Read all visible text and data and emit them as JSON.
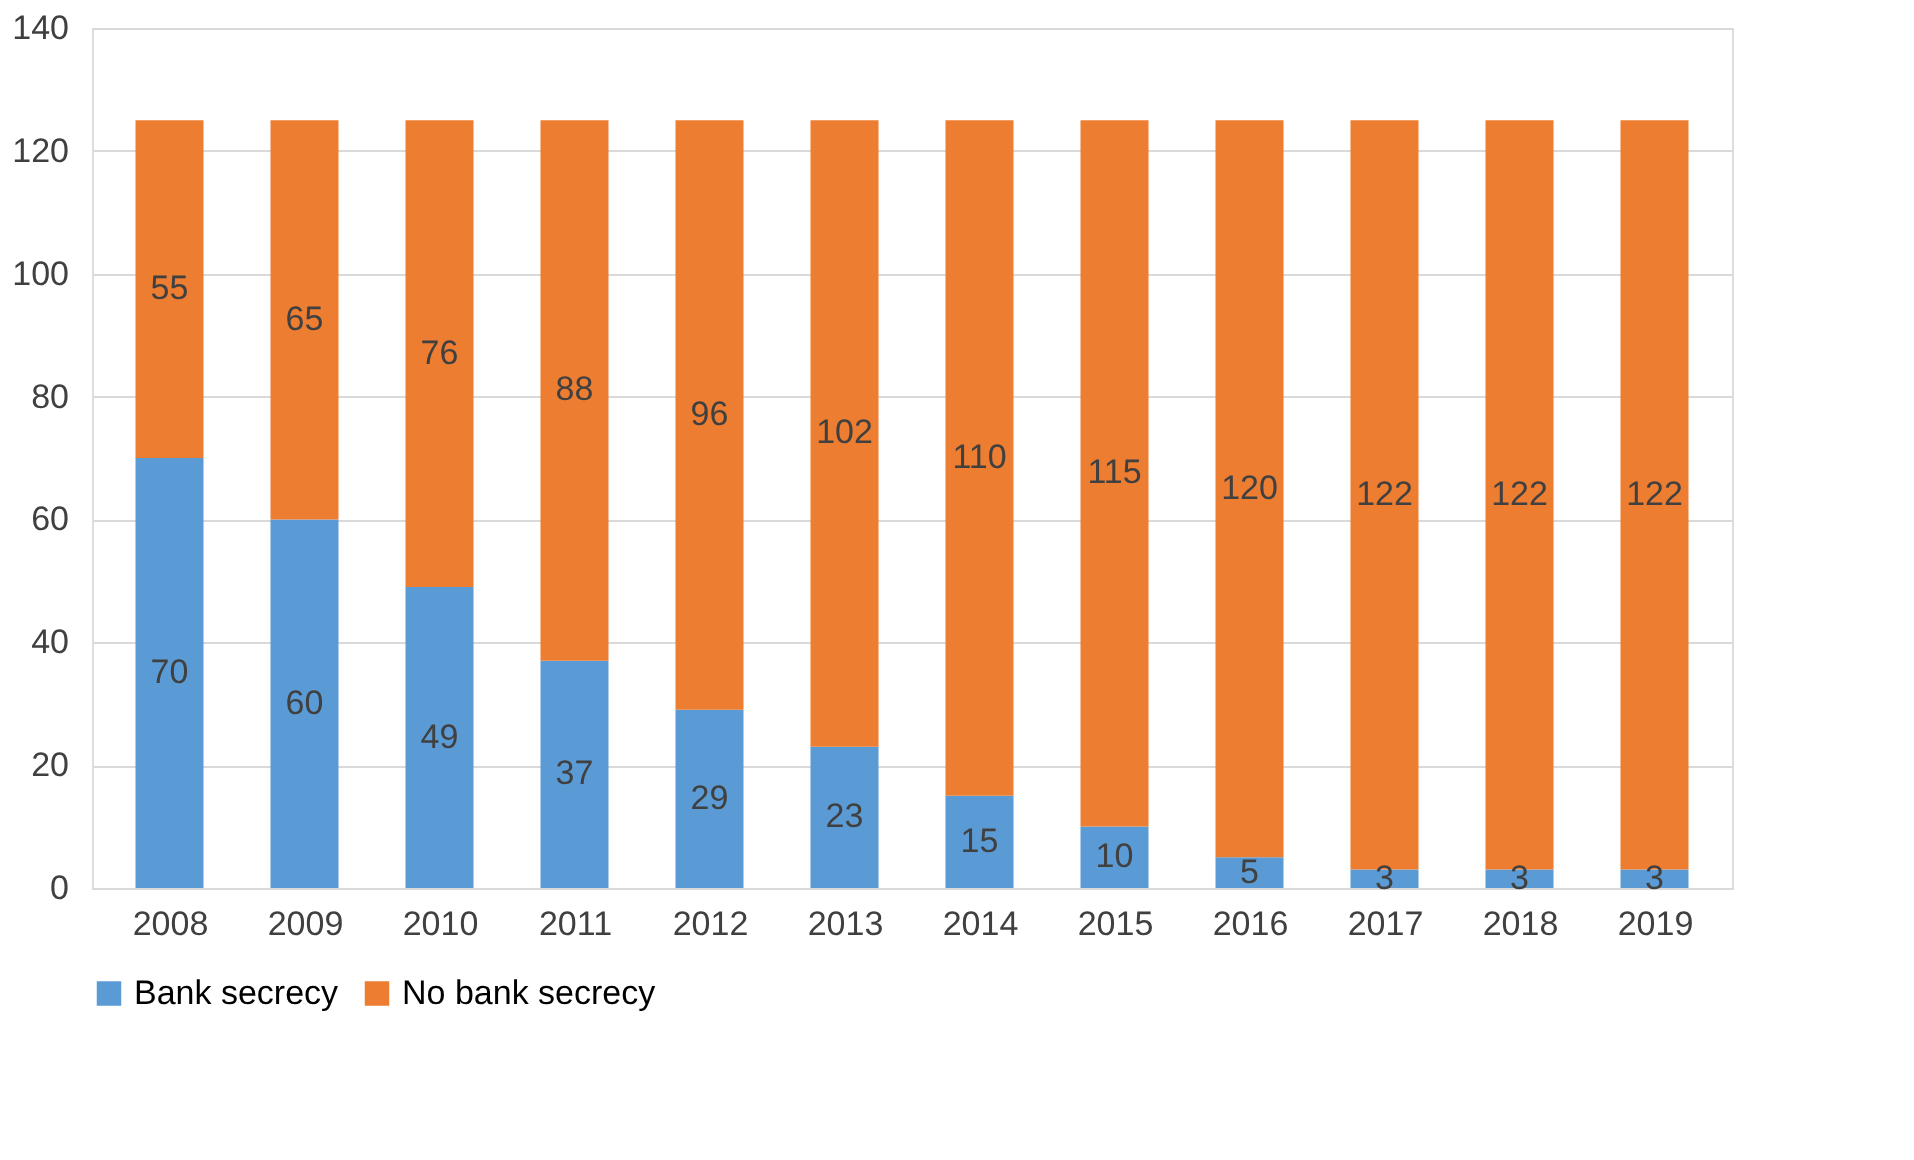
{
  "chart_data": {
    "type": "bar",
    "stacked": true,
    "categories": [
      "2008",
      "2009",
      "2010",
      "2011",
      "2012",
      "2013",
      "2014",
      "2015",
      "2016",
      "2017",
      "2018",
      "2019"
    ],
    "series": [
      {
        "name": "Bank secrecy",
        "color": "#5b9bd5",
        "values": [
          70,
          60,
          49,
          37,
          29,
          23,
          15,
          10,
          5,
          3,
          3,
          3
        ]
      },
      {
        "name": "No bank secrecy",
        "color": "#ed7d31",
        "values": [
          55,
          65,
          76,
          88,
          96,
          102,
          110,
          115,
          120,
          122,
          122,
          122
        ]
      }
    ],
    "ylim": [
      0,
      140
    ],
    "yticks": [
      0,
      20,
      40,
      60,
      80,
      100,
      120,
      140
    ],
    "grid": "y",
    "legend": "bottom",
    "data_labels": true
  }
}
